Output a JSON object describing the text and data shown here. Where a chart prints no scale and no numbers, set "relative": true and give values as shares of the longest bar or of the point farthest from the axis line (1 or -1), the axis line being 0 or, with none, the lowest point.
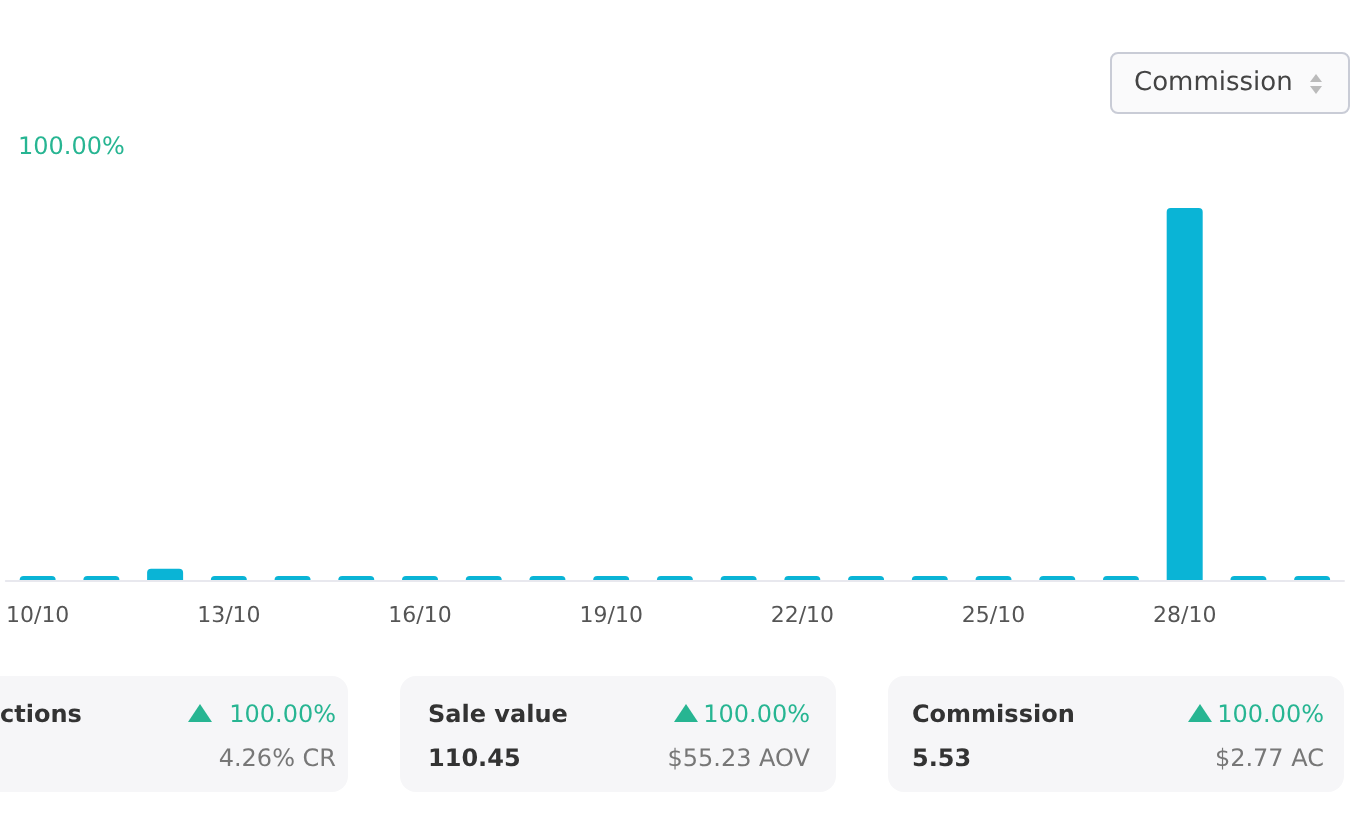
{
  "chart_data": {
    "type": "bar",
    "relative": true,
    "color": "#0ab4d6",
    "categories": [
      "10/10",
      null,
      null,
      "13/10",
      null,
      null,
      "16/10",
      null,
      null,
      "19/10",
      null,
      null,
      "22/10",
      null,
      null,
      "25/10",
      null,
      null,
      "28/10",
      null,
      null
    ],
    "values": [
      0,
      0,
      0.03,
      0,
      0,
      0,
      0,
      0,
      0,
      0,
      0,
      0,
      0,
      0,
      0,
      0,
      0,
      0,
      1,
      0,
      0
    ],
    "annotations": [
      "100.00%",
      "Commission",
      "ctions",
      "100.00%",
      "4.26% CR",
      "Sale value",
      "100.00%",
      "110.45",
      "$55.23 AOV",
      "Commission",
      "100.00%",
      "5.53",
      "$2.77 AC"
    ]
  }
}
